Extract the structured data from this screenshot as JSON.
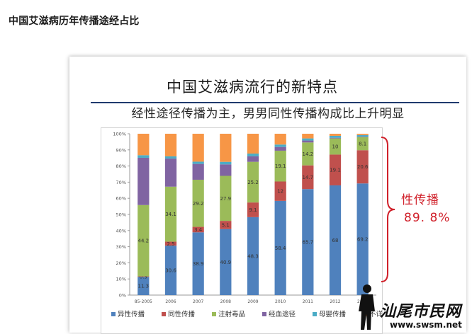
{
  "page": {
    "title": "中国艾滋病历年传播途经占比"
  },
  "slide": {
    "title": "中国艾滋病流行的新特点",
    "subtitle": "经性途径传播为主，男男同性传播构成比上升明显",
    "callout": {
      "label": "性传播",
      "value": "89. 8%"
    }
  },
  "watermark": {
    "text": "汕尾市民网",
    "url": "www.swsm.net"
  },
  "chart_data": {
    "type": "bar",
    "stacked": true,
    "categories": [
      "85-2005",
      "2006",
      "2007",
      "2008",
      "2009",
      "2010",
      "2011",
      "2012",
      "2013"
    ],
    "ylim": [
      0,
      100
    ],
    "y_ticks": [
      "0%",
      "10%",
      "20%",
      "30%",
      "40%",
      "50%",
      "60%",
      "70%",
      "80%",
      "90%",
      "100%"
    ],
    "grid": false,
    "legend_position": "bottom",
    "series": [
      {
        "name": "异性传播",
        "color": "#4f81bd",
        "values": [
          11.3,
          30.6,
          38.9,
          40.9,
          48.3,
          58.4,
          65.7,
          68,
          69.2
        ],
        "labels": [
          "11.3",
          "30.6",
          "38.9",
          "40.9",
          "48.3",
          "58.4",
          "65.7",
          "68",
          "69.2"
        ]
      },
      {
        "name": "同性传播",
        "color": "#c0504d",
        "values": [
          0.3,
          2.5,
          3.4,
          5.1,
          9.1,
          12,
          14.7,
          19.1,
          20.6
        ],
        "labels": [
          "0.3",
          "2.5",
          "3.4",
          "5.1",
          "9.1",
          "12",
          "14.7",
          "19.1",
          "20.6"
        ]
      },
      {
        "name": "注射毒品",
        "color": "#9bbb59",
        "values": [
          44.2,
          34.1,
          29.2,
          27.9,
          25.2,
          19.1,
          14.2,
          10,
          8.1
        ],
        "labels": [
          "44.2",
          "34.1",
          "29.2",
          "27.9",
          "25.2",
          "19.1",
          "14.2",
          "10",
          "8.1"
        ]
      },
      {
        "name": "经血途径",
        "color": "#8064a2",
        "values": [
          29.3,
          17.4,
          9.8,
          7.1,
          3.4,
          2.3,
          1.2,
          0.4,
          0.3
        ],
        "labels": [
          "",
          "",
          "",
          "",
          "",
          "",
          "",
          "",
          ""
        ]
      },
      {
        "name": "母婴传播",
        "color": "#4bacc6",
        "values": [
          1.6,
          1.4,
          1.4,
          1.6,
          1.7,
          1.5,
          1.3,
          1.2,
          1
        ],
        "labels": [
          "",
          "",
          "",
          "",
          "",
          "",
          "",
          "",
          ""
        ]
      },
      {
        "name": "不详",
        "color": "#f79646",
        "values": [
          13.3,
          14,
          17.3,
          17.4,
          12.3,
          6.7,
          2.9,
          1.3,
          0.8
        ],
        "labels": [
          "",
          "",
          "",
          "",
          "",
          "",
          "",
          "",
          ""
        ]
      }
    ]
  }
}
